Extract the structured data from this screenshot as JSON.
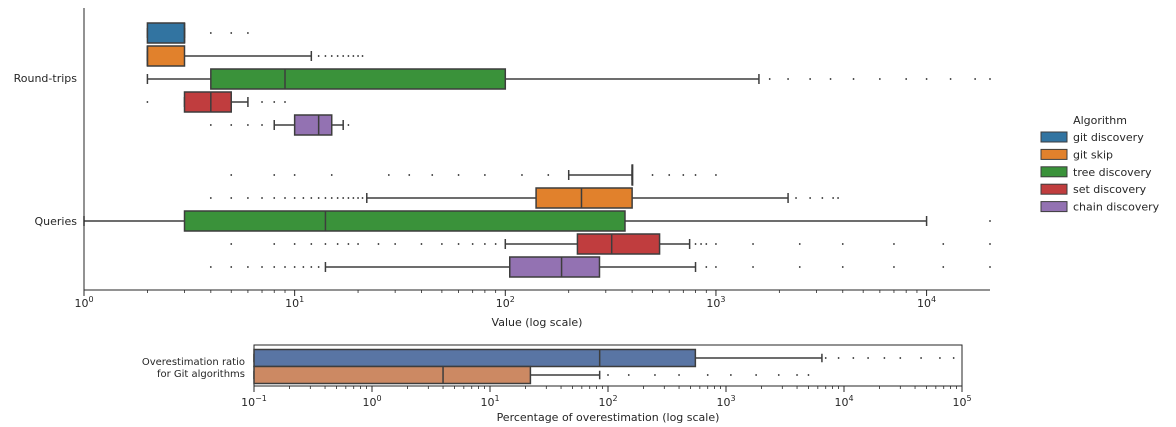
{
  "colors": {
    "git discovery": "#3274a1",
    "git skip": "#e1812c",
    "tree discovery": "#3a923a",
    "set discovery": "#c03d3e",
    "chain discovery": "#9372b2",
    "ratio_git_discovery": "#5975a4",
    "ratio_git_skip": "#cc8963",
    "line": "#3d3d3d"
  },
  "legend": {
    "title": "Algorithm",
    "placement": "right",
    "items": [
      "git discovery",
      "git skip",
      "tree discovery",
      "set discovery",
      "chain discovery"
    ]
  },
  "chart_data": [
    {
      "type": "boxplot",
      "orientation": "horizontal",
      "xscale": "log",
      "xlabel": "Value (log scale)",
      "xlim": [
        1,
        20000
      ],
      "xticks": [
        "10^0",
        "10^1",
        "10^2",
        "10^3",
        "10^4"
      ],
      "categories": [
        "Round-trips",
        "Queries"
      ],
      "hue": [
        "git discovery",
        "git skip",
        "tree discovery",
        "set discovery",
        "chain discovery"
      ],
      "boxes": [
        {
          "category": "Round-trips",
          "series": "git discovery",
          "whislo": 2,
          "q1": 2,
          "med": 3,
          "q3": 3,
          "whishi": 3,
          "fliers": [
            4,
            5,
            6
          ]
        },
        {
          "category": "Round-trips",
          "series": "git skip",
          "whislo": 2,
          "q1": 2,
          "med": 2,
          "q3": 3,
          "whishi": 12,
          "fliers": [
            13,
            14,
            15,
            16,
            17,
            18,
            19,
            20,
            21
          ]
        },
        {
          "category": "Round-trips",
          "series": "tree discovery",
          "whislo": 2,
          "q1": 4,
          "med": 9,
          "q3": 100,
          "whishi": 1600,
          "fliers": [
            1800,
            2200,
            2800,
            3500,
            4500,
            6000,
            8000,
            10000,
            13000,
            17000,
            20000
          ]
        },
        {
          "category": "Round-trips",
          "series": "set discovery",
          "whislo": 3,
          "q1": 3,
          "med": 4,
          "q3": 5,
          "whishi": 6,
          "fliers": [
            2,
            7,
            8,
            9
          ]
        },
        {
          "category": "Round-trips",
          "series": "chain discovery",
          "whislo": 8,
          "q1": 10,
          "med": 13,
          "q3": 15,
          "whishi": 17,
          "fliers": [
            4,
            5,
            6,
            7,
            18
          ]
        },
        {
          "category": "Queries",
          "series": "git discovery",
          "whislo": 200,
          "q1": 400,
          "med": 400,
          "q3": 400,
          "whishi": 400,
          "fliers": [
            5,
            8,
            10,
            15,
            28,
            35,
            45,
            60,
            80,
            120,
            160,
            500,
            600,
            700,
            800,
            1000
          ]
        },
        {
          "category": "Queries",
          "series": "git skip",
          "whislo": 22,
          "q1": 140,
          "med": 230,
          "q3": 400,
          "whishi": 2200,
          "fliers": [
            4,
            5,
            6,
            7,
            8,
            9,
            10,
            11,
            12,
            13,
            14,
            15,
            16,
            17,
            18,
            19,
            20,
            21,
            2400,
            2800,
            3200,
            3600,
            3800
          ]
        },
        {
          "category": "Queries",
          "series": "tree discovery",
          "whislo": 1,
          "q1": 3,
          "med": 14,
          "q3": 370,
          "whishi": 10000,
          "fliers": [
            20000
          ]
        },
        {
          "category": "Queries",
          "series": "set discovery",
          "whislo": 100,
          "q1": 220,
          "med": 320,
          "q3": 540,
          "whishi": 750,
          "fliers": [
            5,
            8,
            10,
            12,
            14,
            16,
            18,
            20,
            25,
            30,
            40,
            50,
            60,
            70,
            80,
            90,
            800,
            850,
            900,
            1000,
            1500,
            2500,
            4000,
            7000,
            12000,
            20000
          ]
        },
        {
          "category": "Queries",
          "series": "chain discovery",
          "whislo": 14,
          "q1": 105,
          "med": 185,
          "q3": 280,
          "whishi": 800,
          "fliers": [
            4,
            5,
            6,
            7,
            8,
            9,
            10,
            11,
            12,
            13,
            900,
            1000,
            1500,
            2500,
            4000,
            7000,
            12000,
            20000
          ]
        }
      ]
    },
    {
      "type": "boxplot",
      "orientation": "horizontal",
      "xscale": "log",
      "xlabel": "Percentage of overestimation (log scale)",
      "xlim": [
        0.1,
        100000
      ],
      "xticks": [
        "10^-1",
        "10^0",
        "10^1",
        "10^2",
        "10^3",
        "10^4",
        "10^5"
      ],
      "ylabel_lines": [
        "Overestimation ratio",
        "for Git algorithms"
      ],
      "boxes": [
        {
          "series": "git discovery",
          "color_key": "ratio_git_discovery",
          "whislo": 0.1,
          "q1": 0.1,
          "med": 85,
          "q3": 550,
          "whishi": 6500,
          "fliers": [
            7000,
            9000,
            12000,
            16000,
            22000,
            30000,
            45000,
            65000,
            85000
          ]
        },
        {
          "series": "git skip",
          "color_key": "ratio_git_skip",
          "whislo": 0.1,
          "q1": 0.1,
          "med": 4,
          "q3": 22,
          "whishi": 85,
          "fliers": [
            100,
            150,
            250,
            400,
            700,
            1100,
            1800,
            2800,
            4000,
            5000
          ]
        }
      ]
    }
  ]
}
